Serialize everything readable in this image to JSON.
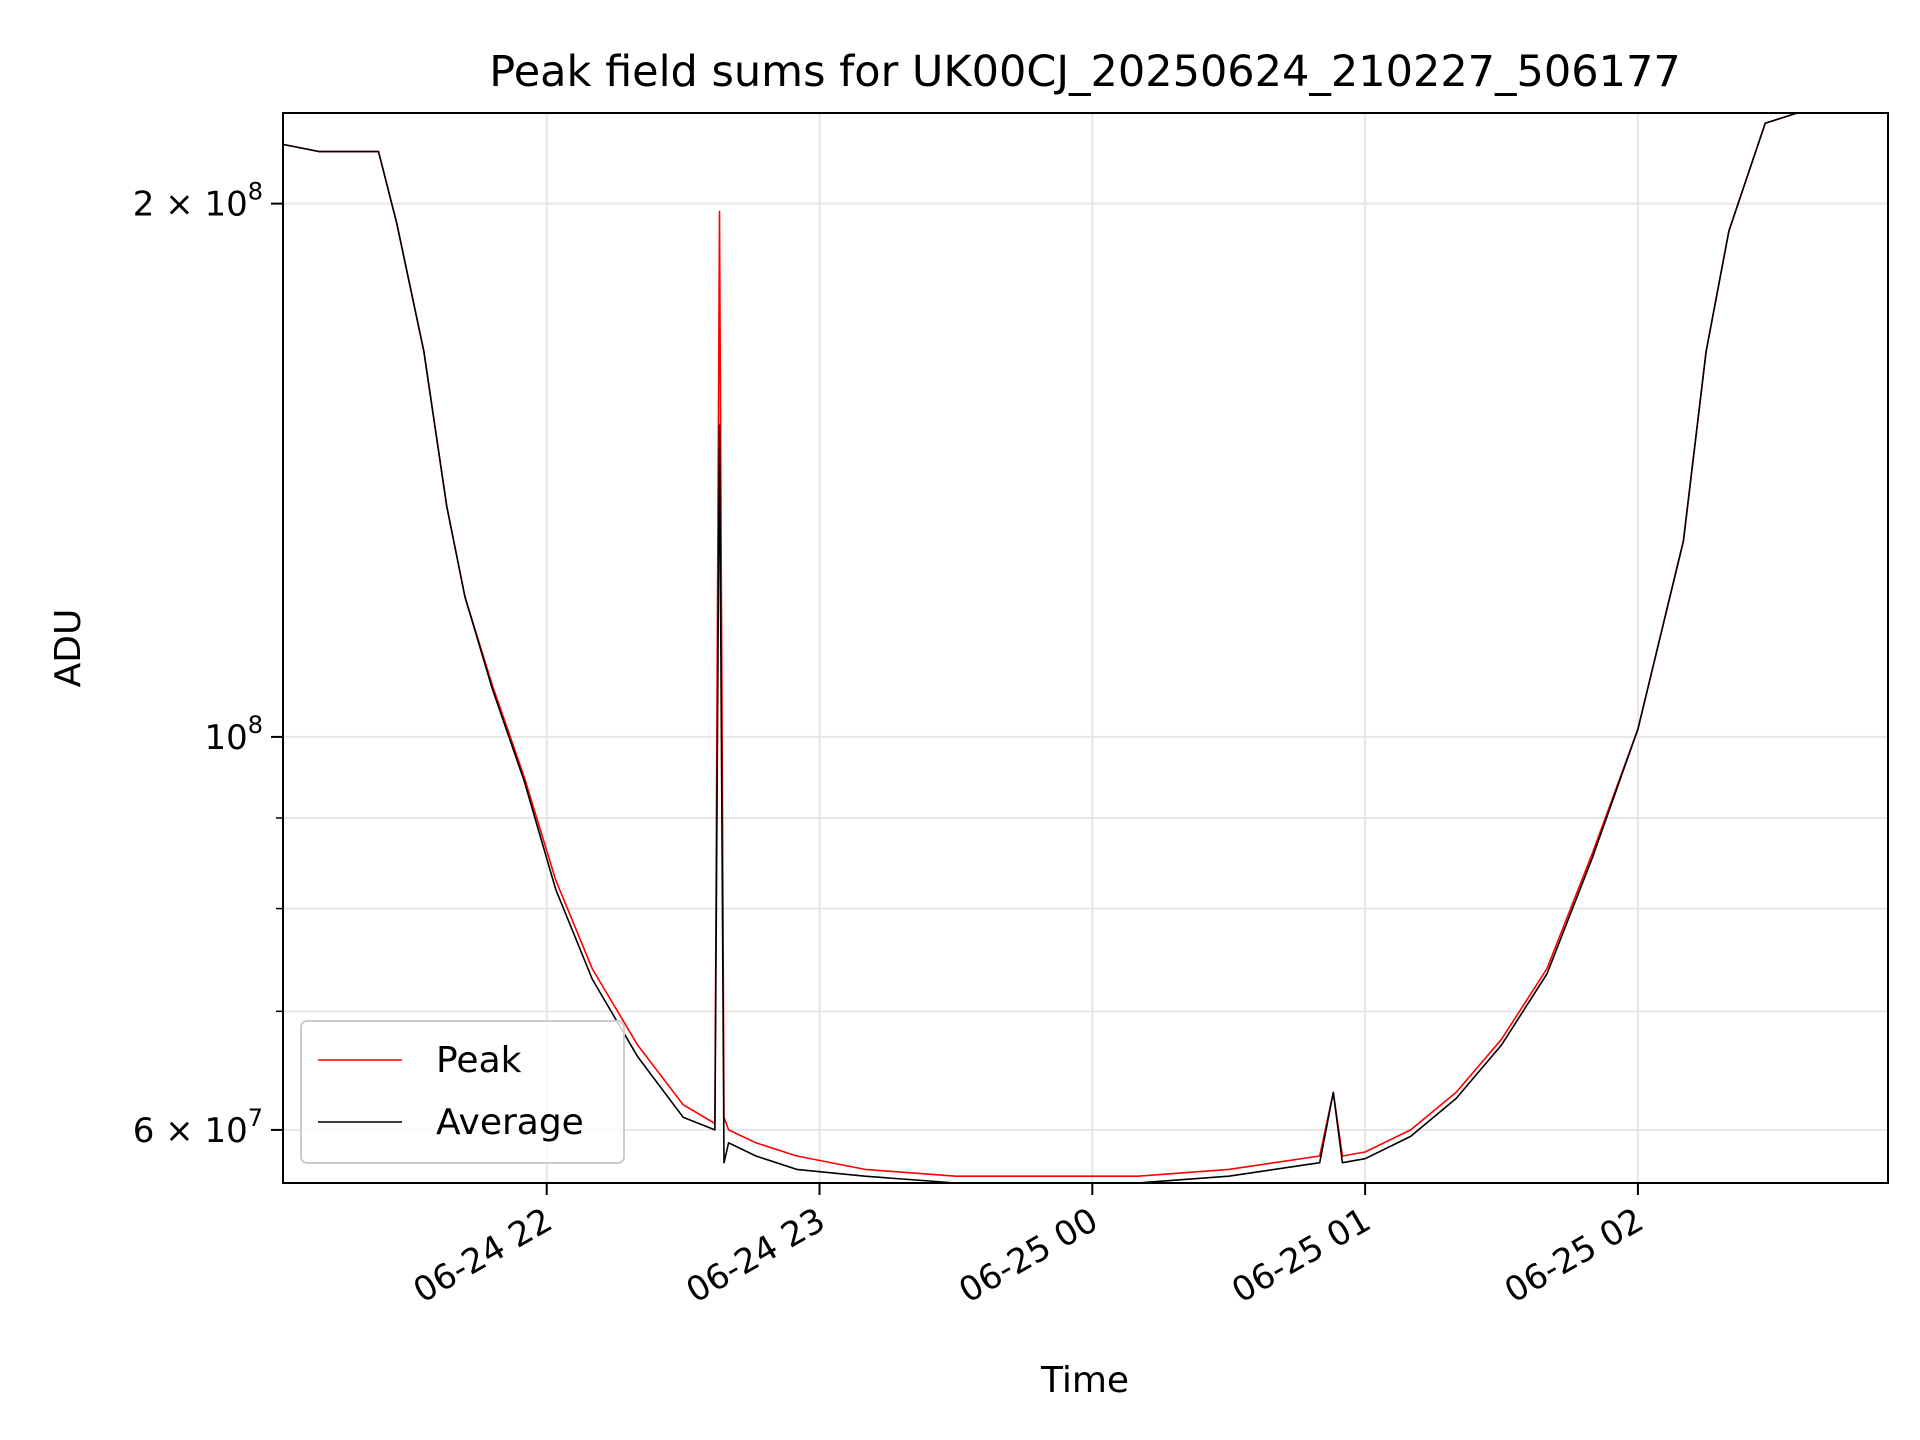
{
  "chart_data": {
    "type": "line",
    "title": "Peak field sums for UK00CJ_20250624_210227_506177",
    "xlabel": "Time",
    "ylabel": "ADU",
    "yscale": "log",
    "xlim": [
      "2025-06-24 21:02",
      "2025-06-25 02:55"
    ],
    "ylim": [
      56000000,
      225000000
    ],
    "grid": true,
    "legend_position": "lower-left",
    "x_ticks": [
      {
        "value": "2025-06-24 22:00",
        "label": "06-24 22"
      },
      {
        "value": "2025-06-24 23:00",
        "label": "06-24 23"
      },
      {
        "value": "2025-06-25 00:00",
        "label": "06-25 00"
      },
      {
        "value": "2025-06-25 01:00",
        "label": "06-25 01"
      },
      {
        "value": "2025-06-25 02:00",
        "label": "06-25 02"
      }
    ],
    "y_major_ticks": [
      {
        "value": 60000000,
        "label_mantissa": "6",
        "label_base": "10",
        "label_exponent": "7"
      },
      {
        "value": 100000000,
        "label_mantissa": "",
        "label_base": "10",
        "label_exponent": "8"
      },
      {
        "value": 200000000,
        "label_mantissa": "2",
        "label_base": "10",
        "label_exponent": "8"
      }
    ],
    "y_minor_ticks": [
      70000000,
      80000000,
      90000000
    ],
    "series": [
      {
        "name": "Peak",
        "color": "#ff0000",
        "x": [
          "2025-06-24 21:02",
          "2025-06-24 21:10",
          "2025-06-24 21:23",
          "2025-06-24 21:27",
          "2025-06-24 21:33",
          "2025-06-24 21:38",
          "2025-06-24 21:42",
          "2025-06-24 21:48",
          "2025-06-24 21:55",
          "2025-06-24 22:02",
          "2025-06-24 22:10",
          "2025-06-24 22:20",
          "2025-06-24 22:30",
          "2025-06-24 22:37",
          "2025-06-24 22:38",
          "2025-06-24 22:39",
          "2025-06-24 22:40",
          "2025-06-24 22:46",
          "2025-06-24 22:55",
          "2025-06-24 23:10",
          "2025-06-24 23:30",
          "2025-06-24 23:50",
          "2025-06-25 00:10",
          "2025-06-25 00:30",
          "2025-06-25 00:50",
          "2025-06-25 00:53",
          "2025-06-25 00:55",
          "2025-06-25 01:00",
          "2025-06-25 01:10",
          "2025-06-25 01:20",
          "2025-06-25 01:30",
          "2025-06-25 01:40",
          "2025-06-25 01:50",
          "2025-06-25 02:00",
          "2025-06-25 02:10",
          "2025-06-25 02:15",
          "2025-06-25 02:20",
          "2025-06-25 02:28",
          "2025-06-25 02:35"
        ],
        "values": [
          216000000,
          214000000,
          214000000,
          195000000,
          165000000,
          135000000,
          120000000,
          107000000,
          95000000,
          83000000,
          74000000,
          67000000,
          62000000,
          60500000,
          198000000,
          61000000,
          60000000,
          59000000,
          58000000,
          57000000,
          56500000,
          56500000,
          56500000,
          57000000,
          58000000,
          63000000,
          58000000,
          58300000,
          60000000,
          63000000,
          67500000,
          74000000,
          86000000,
          101000000,
          129000000,
          165000000,
          193000000,
          222000000,
          225000000
        ]
      },
      {
        "name": "Average",
        "color": "#000000",
        "x": [
          "2025-06-24 21:02",
          "2025-06-24 21:10",
          "2025-06-24 21:23",
          "2025-06-24 21:27",
          "2025-06-24 21:33",
          "2025-06-24 21:38",
          "2025-06-24 21:42",
          "2025-06-24 21:48",
          "2025-06-24 21:55",
          "2025-06-24 22:02",
          "2025-06-24 22:10",
          "2025-06-24 22:20",
          "2025-06-24 22:30",
          "2025-06-24 22:37",
          "2025-06-24 22:38",
          "2025-06-24 22:39",
          "2025-06-24 22:40",
          "2025-06-24 22:46",
          "2025-06-24 22:55",
          "2025-06-24 23:10",
          "2025-06-24 23:30",
          "2025-06-24 23:50",
          "2025-06-25 00:10",
          "2025-06-25 00:30",
          "2025-06-25 00:50",
          "2025-06-25 00:53",
          "2025-06-25 00:55",
          "2025-06-25 01:00",
          "2025-06-25 01:10",
          "2025-06-25 01:20",
          "2025-06-25 01:30",
          "2025-06-25 01:40",
          "2025-06-25 01:50",
          "2025-06-25 02:00",
          "2025-06-25 02:10",
          "2025-06-25 02:15",
          "2025-06-25 02:20",
          "2025-06-25 02:28",
          "2025-06-25 02:35"
        ],
        "values": [
          216000000,
          214000000,
          214000000,
          195000000,
          165000000,
          135000000,
          120000000,
          106500000,
          94500000,
          82000000,
          73000000,
          66000000,
          61000000,
          60000000,
          150000000,
          57500000,
          59000000,
          58000000,
          57000000,
          56500000,
          56000000,
          56000000,
          56000000,
          56500000,
          57500000,
          63000000,
          57500000,
          57800000,
          59500000,
          62500000,
          67000000,
          73500000,
          85500000,
          101000000,
          129000000,
          165000000,
          193000000,
          222000000,
          225000000
        ]
      }
    ]
  }
}
